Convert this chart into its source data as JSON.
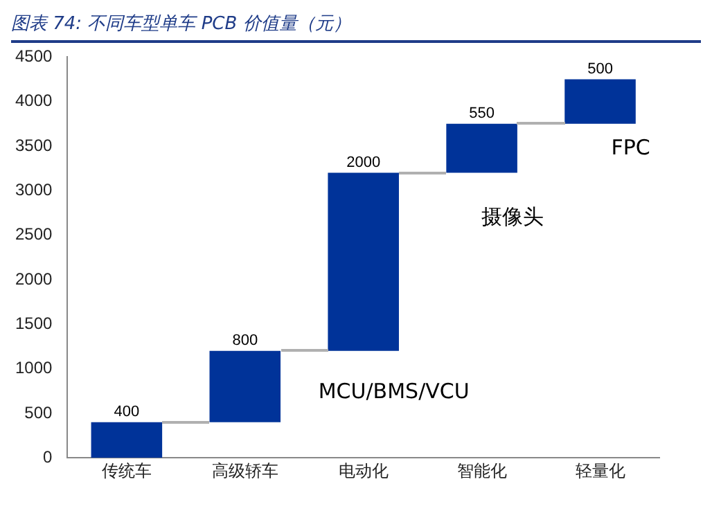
{
  "chart_data": {
    "type": "bar",
    "title": "图表 74:  不同车型单车 PCB 价值量（元）",
    "categories": [
      "传统车",
      "高级轿车",
      "电动化",
      "智能化",
      "轻量化"
    ],
    "values": [
      400,
      800,
      2000,
      550,
      500
    ],
    "base": [
      0,
      400,
      1200,
      3200,
      3750
    ],
    "color": "#003399",
    "ylim": [
      0,
      4500
    ],
    "yticks": [
      0,
      500,
      1000,
      1500,
      2000,
      2500,
      3000,
      3500,
      4000,
      4500
    ],
    "grid": false,
    "legend": false,
    "data_labels": true,
    "annotations": [
      "MCU/BMS/VCU",
      "摄像头",
      "FPC"
    ]
  }
}
